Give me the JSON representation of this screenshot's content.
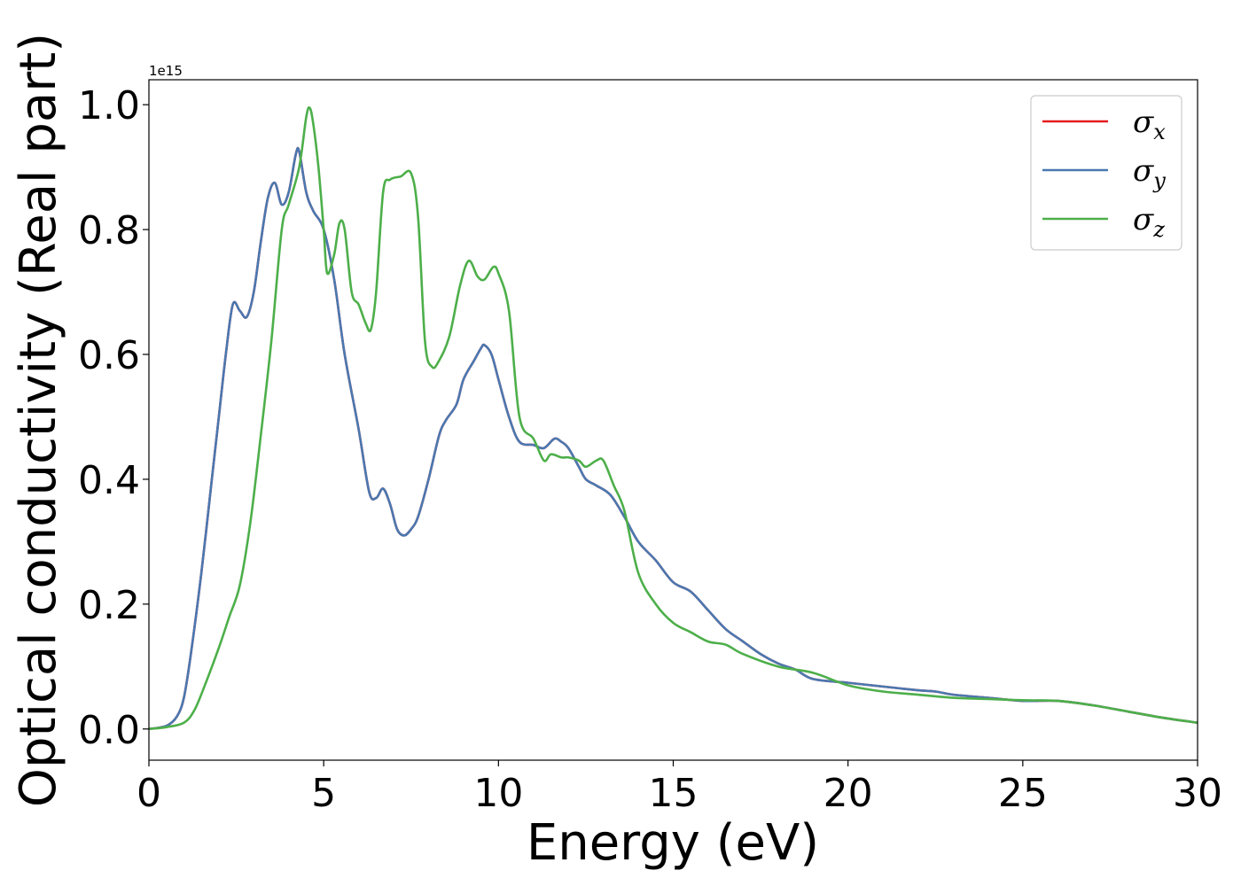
{
  "chart_data": {
    "type": "line",
    "title": "",
    "xlabel": "Energy (eV)",
    "ylabel": "Optical conductivity (Real part)",
    "offset_text": "1e15",
    "xlim": [
      0,
      30
    ],
    "ylim": [
      -0.05,
      1.04
    ],
    "xticks": [
      0,
      5,
      10,
      15,
      20,
      25,
      30
    ],
    "xtick_labels": [
      "0",
      "5",
      "10",
      "15",
      "20",
      "25",
      "30"
    ],
    "yticks": [
      0.0,
      0.2,
      0.4,
      0.6,
      0.8,
      1.0
    ],
    "ytick_labels": [
      "0.0",
      "0.2",
      "0.4",
      "0.6",
      "0.8",
      "1.0"
    ],
    "grid": false,
    "legend_position": "top-right",
    "series": [
      {
        "name": "σx",
        "legend_base": "σ",
        "legend_sub": "x",
        "color": "#e41a1c",
        "x": [
          0,
          0.5,
          0.8,
          1.0,
          1.2,
          1.5,
          1.8,
          2.0,
          2.2,
          2.4,
          2.6,
          2.8,
          3.0,
          3.2,
          3.4,
          3.6,
          3.8,
          4.0,
          4.2,
          4.3,
          4.5,
          4.7,
          5.0,
          5.3,
          5.6,
          6.0,
          6.3,
          6.5,
          6.7,
          6.9,
          7.1,
          7.3,
          7.5,
          7.7,
          8.0,
          8.3,
          8.5,
          8.8,
          9.0,
          9.3,
          9.5,
          9.6,
          9.8,
          10.0,
          10.3,
          10.6,
          11.0,
          11.3,
          11.6,
          11.8,
          12.0,
          12.3,
          12.5,
          12.8,
          13.2,
          13.6,
          14.0,
          14.5,
          15.0,
          15.5,
          16.0,
          16.5,
          17.0,
          17.5,
          18.0,
          18.5,
          19.0,
          20.0,
          21.0,
          22.0,
          22.5,
          23.0,
          24.0,
          25.0,
          26.0,
          27.0,
          28.0,
          29.0,
          30.0
        ],
        "y": [
          0.0,
          0.005,
          0.02,
          0.05,
          0.12,
          0.25,
          0.4,
          0.5,
          0.6,
          0.68,
          0.67,
          0.66,
          0.7,
          0.78,
          0.85,
          0.875,
          0.84,
          0.86,
          0.92,
          0.925,
          0.86,
          0.83,
          0.8,
          0.72,
          0.6,
          0.48,
          0.38,
          0.37,
          0.385,
          0.36,
          0.32,
          0.31,
          0.32,
          0.34,
          0.4,
          0.47,
          0.495,
          0.52,
          0.56,
          0.59,
          0.61,
          0.615,
          0.6,
          0.56,
          0.5,
          0.46,
          0.455,
          0.45,
          0.465,
          0.46,
          0.45,
          0.42,
          0.4,
          0.39,
          0.375,
          0.34,
          0.3,
          0.27,
          0.235,
          0.22,
          0.19,
          0.16,
          0.14,
          0.12,
          0.105,
          0.095,
          0.08,
          0.074,
          0.068,
          0.062,
          0.06,
          0.055,
          0.05,
          0.045,
          0.045,
          0.038,
          0.028,
          0.018,
          0.01
        ]
      },
      {
        "name": "σy",
        "legend_base": "σ",
        "legend_sub": "y",
        "color": "#4a78b0",
        "x": [
          0,
          0.5,
          0.8,
          1.0,
          1.2,
          1.5,
          1.8,
          2.0,
          2.2,
          2.4,
          2.6,
          2.8,
          3.0,
          3.2,
          3.4,
          3.6,
          3.8,
          4.0,
          4.2,
          4.3,
          4.5,
          4.7,
          5.0,
          5.3,
          5.6,
          6.0,
          6.3,
          6.5,
          6.7,
          6.9,
          7.1,
          7.3,
          7.5,
          7.7,
          8.0,
          8.3,
          8.5,
          8.8,
          9.0,
          9.3,
          9.5,
          9.6,
          9.8,
          10.0,
          10.3,
          10.6,
          11.0,
          11.3,
          11.6,
          11.8,
          12.0,
          12.3,
          12.5,
          12.8,
          13.2,
          13.6,
          14.0,
          14.5,
          15.0,
          15.5,
          16.0,
          16.5,
          17.0,
          17.5,
          18.0,
          18.5,
          19.0,
          20.0,
          21.0,
          22.0,
          22.5,
          23.0,
          24.0,
          25.0,
          26.0,
          27.0,
          28.0,
          29.0,
          30.0
        ],
        "y": [
          0.0,
          0.005,
          0.02,
          0.05,
          0.12,
          0.25,
          0.4,
          0.5,
          0.6,
          0.68,
          0.67,
          0.66,
          0.7,
          0.78,
          0.85,
          0.875,
          0.84,
          0.86,
          0.92,
          0.925,
          0.86,
          0.83,
          0.8,
          0.72,
          0.6,
          0.48,
          0.38,
          0.37,
          0.385,
          0.36,
          0.32,
          0.31,
          0.32,
          0.34,
          0.4,
          0.47,
          0.495,
          0.52,
          0.56,
          0.59,
          0.61,
          0.615,
          0.6,
          0.56,
          0.5,
          0.46,
          0.455,
          0.45,
          0.465,
          0.46,
          0.45,
          0.42,
          0.4,
          0.39,
          0.375,
          0.34,
          0.3,
          0.27,
          0.235,
          0.22,
          0.19,
          0.16,
          0.14,
          0.12,
          0.105,
          0.095,
          0.08,
          0.074,
          0.068,
          0.062,
          0.06,
          0.055,
          0.05,
          0.045,
          0.045,
          0.038,
          0.028,
          0.018,
          0.01
        ]
      },
      {
        "name": "σz",
        "legend_base": "σ",
        "legend_sub": "z",
        "color": "#4daf4a",
        "x": [
          0,
          0.5,
          1.0,
          1.3,
          1.6,
          2.0,
          2.3,
          2.6,
          2.9,
          3.2,
          3.5,
          3.8,
          4.0,
          4.3,
          4.5,
          4.6,
          4.7,
          4.85,
          5.0,
          5.1,
          5.3,
          5.45,
          5.6,
          5.8,
          6.0,
          6.2,
          6.35,
          6.5,
          6.7,
          6.9,
          7.2,
          7.5,
          7.7,
          7.9,
          8.1,
          8.3,
          8.6,
          8.9,
          9.15,
          9.4,
          9.6,
          9.85,
          10.0,
          10.3,
          10.6,
          11.0,
          11.3,
          11.5,
          11.8,
          12.0,
          12.3,
          12.5,
          12.8,
          13.0,
          13.3,
          13.6,
          14.0,
          14.5,
          15.0,
          15.5,
          16.0,
          16.5,
          17.0,
          18.0,
          19.0,
          20.0,
          21.0,
          22.0,
          23.0,
          24.0,
          25.0,
          26.0,
          27.0,
          28.0,
          29.0,
          30.0
        ],
        "y": [
          0.0,
          0.003,
          0.01,
          0.03,
          0.07,
          0.13,
          0.18,
          0.23,
          0.33,
          0.47,
          0.62,
          0.8,
          0.84,
          0.9,
          0.98,
          0.995,
          0.97,
          0.9,
          0.8,
          0.73,
          0.76,
          0.81,
          0.8,
          0.7,
          0.68,
          0.65,
          0.64,
          0.7,
          0.86,
          0.88,
          0.885,
          0.89,
          0.82,
          0.62,
          0.58,
          0.59,
          0.63,
          0.71,
          0.75,
          0.725,
          0.72,
          0.74,
          0.73,
          0.67,
          0.5,
          0.465,
          0.43,
          0.44,
          0.435,
          0.435,
          0.43,
          0.42,
          0.43,
          0.43,
          0.39,
          0.35,
          0.25,
          0.2,
          0.17,
          0.155,
          0.14,
          0.135,
          0.12,
          0.1,
          0.09,
          0.07,
          0.06,
          0.055,
          0.05,
          0.048,
          0.046,
          0.045,
          0.038,
          0.028,
          0.018,
          0.01
        ]
      }
    ]
  }
}
